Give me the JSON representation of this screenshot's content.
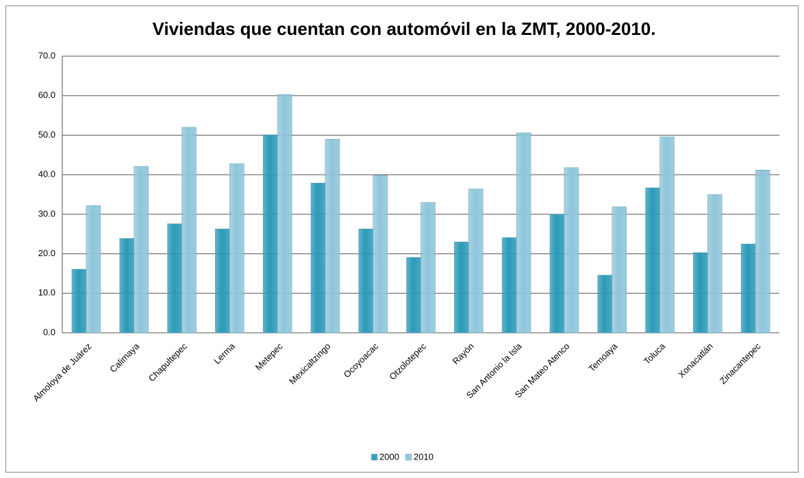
{
  "chart_data": {
    "type": "bar",
    "title": "Viviendas que cuentan con automóvil en la ZMT, 2000-2010.",
    "categories": [
      "Almoloya de Juárez",
      "Calimaya",
      "Chapultepec",
      "Lerma",
      "Metepec",
      "Mexicaltzingo",
      "Ocoyoacac",
      "Otzolotepec",
      "Rayón",
      "San Antonio la Isla",
      "San Mateo Atenco",
      "Temoaya",
      "Toluca",
      "Xonacatlán",
      "Zinacantepec"
    ],
    "series": [
      {
        "name": "2000",
        "color": "#2b9ab8",
        "values": [
          16.1,
          23.9,
          27.6,
          26.3,
          50.1,
          37.9,
          26.3,
          19.1,
          23.0,
          24.1,
          30.0,
          14.6,
          36.7,
          20.3,
          22.5
        ]
      },
      {
        "name": "2010",
        "color": "#8ec5db",
        "values": [
          32.2,
          42.1,
          52.0,
          42.8,
          60.3,
          49.0,
          39.9,
          33.0,
          36.4,
          50.6,
          41.8,
          31.9,
          49.6,
          35.0,
          41.2
        ]
      }
    ],
    "ylim": [
      0,
      70
    ],
    "yticks": [
      {
        "value": 0,
        "label": "0.0"
      },
      {
        "value": 10,
        "label": "10.0"
      },
      {
        "value": 20,
        "label": "20.0"
      },
      {
        "value": 30,
        "label": "30.0"
      },
      {
        "value": 40,
        "label": "40.0"
      },
      {
        "value": 50,
        "label": "50.0"
      },
      {
        "value": 60,
        "label": "60.0"
      },
      {
        "value": 70,
        "label": "70.0"
      }
    ],
    "grid": true,
    "legend": "bottom"
  }
}
